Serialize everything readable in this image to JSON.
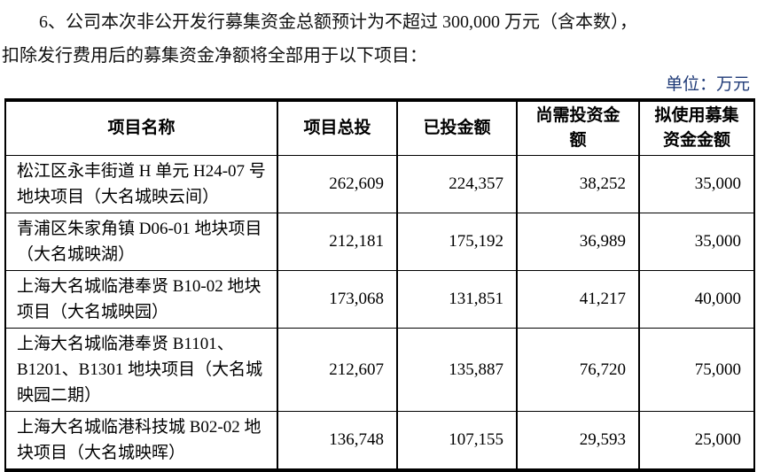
{
  "page": {
    "paragraph": {
      "line1": "6、公司本次非公开发行募集资金总额预计为不超过 300,000 万元（含本数），",
      "line2": "扣除发行费用后的募集资金净额将全部用于以下项目："
    },
    "unit_label": "单位：万元"
  },
  "table": {
    "columns": [
      "项目名称",
      "项目总投",
      "已投金额",
      "尚需投资金额",
      "拟使用募集资金金额"
    ],
    "rows": [
      {
        "name": "松江区永丰街道 H 单元 H24-07 号地块项目（大名城映云间）",
        "total": "262,609",
        "invested": "224,357",
        "remaining": "38,252",
        "proposed": "35,000"
      },
      {
        "name": "青浦区朱家角镇 D06-01 地块项目（大名城映湖）",
        "total": "212,181",
        "invested": "175,192",
        "remaining": "36,989",
        "proposed": "35,000"
      },
      {
        "name": "上海大名城临港奉贤 B10-02 地块项目（大名城映园）",
        "total": "173,068",
        "invested": "131,851",
        "remaining": "41,217",
        "proposed": "40,000"
      },
      {
        "name": "上海大名城临港奉贤 B1101、B1201、B1301 地块项目（大名城映园二期）",
        "total": "212,607",
        "invested": "135,887",
        "remaining": "76,720",
        "proposed": "75,000"
      },
      {
        "name": "上海大名城临港科技城 B02-02 地块项目（大名城映晖）",
        "total": "136,748",
        "invested": "107,155",
        "remaining": "29,593",
        "proposed": "25,000"
      }
    ]
  },
  "colors": {
    "text": "#111111",
    "unit_label": "#1f3a77",
    "table_border": "#000000",
    "background": "#ffffff"
  }
}
